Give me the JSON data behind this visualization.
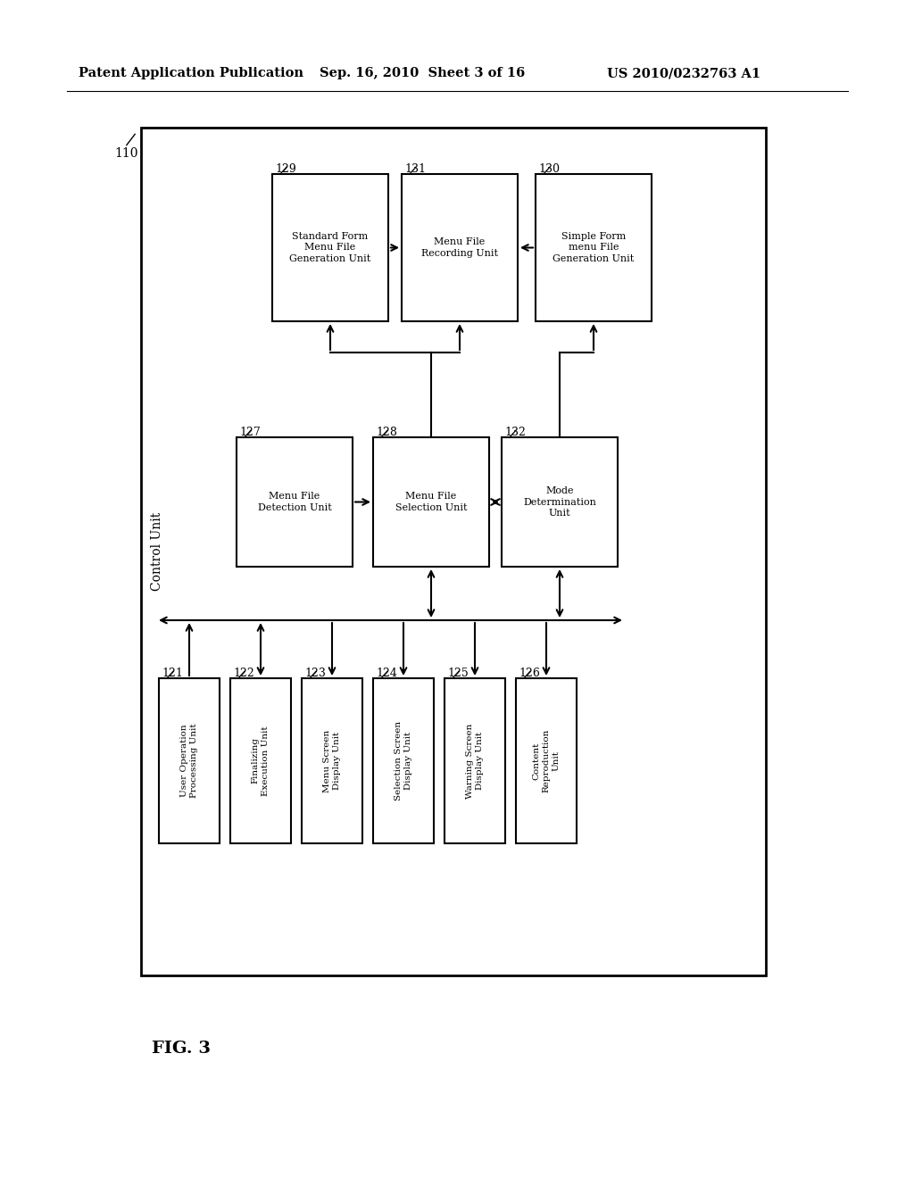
{
  "header_left": "Patent Application Publication",
  "header_mid": "Sep. 16, 2010  Sheet 3 of 16",
  "header_right": "US 2010/0232763 A1",
  "fig_label": "FIG. 3",
  "bg": "#ffffff",
  "outer_label": "Control Unit",
  "outer_num": "110",
  "bottom_boxes": [
    {
      "num": "121",
      "label": "User Operation\nProcessing Unit"
    },
    {
      "num": "122",
      "label": "Finalizing\nExecution Unit"
    },
    {
      "num": "123",
      "label": "Menu Screen\nDisplay Unit"
    },
    {
      "num": "124",
      "label": "Selection Screen\nDisplay Unit"
    },
    {
      "num": "125",
      "label": "Warning Screen\nDisplay Unit"
    },
    {
      "num": "126",
      "label": "Content\nReproduction\nUnit"
    }
  ],
  "mid_boxes": [
    {
      "num": "127",
      "label": "Menu File\nDetection Unit"
    },
    {
      "num": "128",
      "label": "Menu File\nSelection Unit"
    },
    {
      "num": "132",
      "label": "Mode\nDetermination\nUnit"
    }
  ],
  "top_boxes": [
    {
      "num": "129",
      "label": "Standard Form\nMenu File\nGeneration Unit"
    },
    {
      "num": "131",
      "label": "Menu File\nRecording Unit"
    },
    {
      "num": "130",
      "label": "Simple Form\nmenu File\nGeneration Unit"
    }
  ]
}
